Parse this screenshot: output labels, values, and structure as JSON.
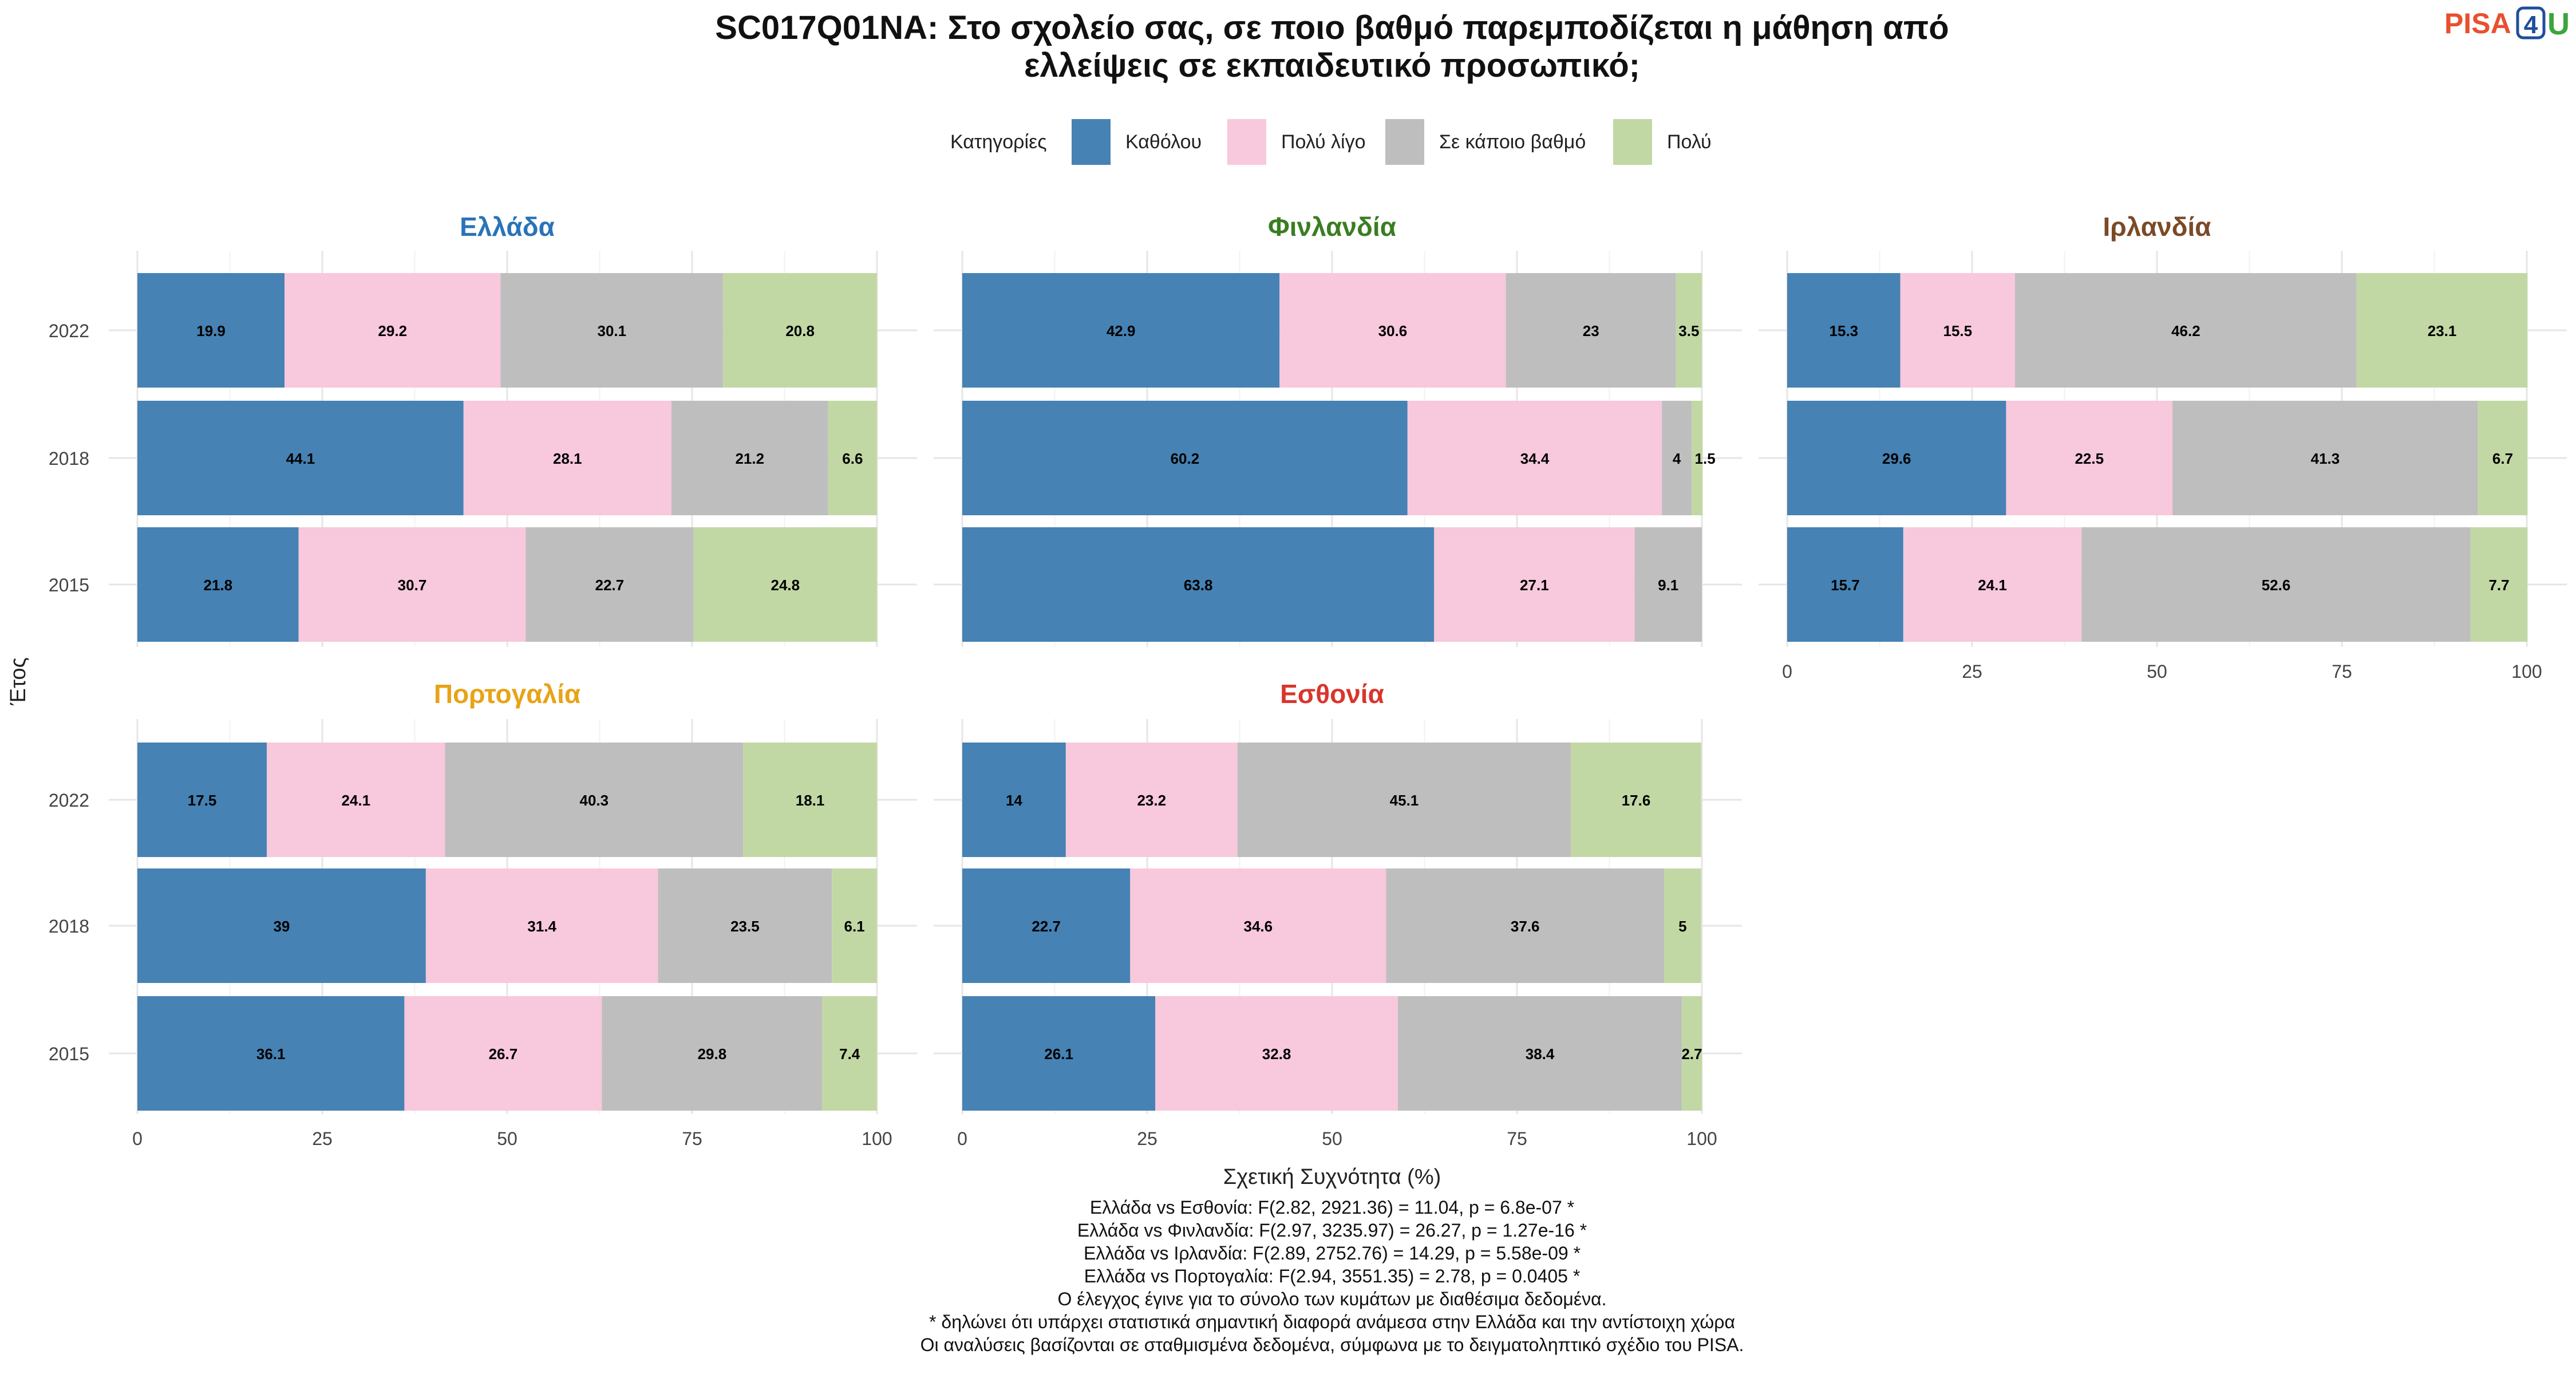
{
  "title_lines": [
    "SC017Q01NA: Στο σχολείο σας, σε ποιο βαθμό παρεμποδίζεται η μάθηση από",
    "ελλείψεις σε εκπαιδευτικό προσωπικό;"
  ],
  "logo": {
    "text_a": "PISA",
    "text_b": "4",
    "text_c": "U",
    "color_a": "#e8502f",
    "color_b": "#1f4e9c",
    "color_c": "#3aa53a"
  },
  "legend": {
    "title": "Κατηγορίες",
    "items": [
      {
        "label": "Καθόλου",
        "color": "#4682b4"
      },
      {
        "label": "Πολύ λίγο",
        "color": "#f8c8dc"
      },
      {
        "label": "Σε κάποιο βαθμό",
        "color": "#bebebe"
      },
      {
        "label": "Πολύ",
        "color": "#c2d8a4"
      }
    ]
  },
  "chart_data": {
    "type": "bar",
    "orientation": "horizontal",
    "stacked": true,
    "xlabel": "Σχετική Συχνότητα (%)",
    "ylabel": "Έτος",
    "xlim": [
      0,
      100
    ],
    "xticks": [
      0,
      25,
      50,
      75,
      100
    ],
    "categories": [
      "2022",
      "2018",
      "2015"
    ],
    "series_names": [
      "Καθόλου",
      "Πολύ λίγο",
      "Σε κάποιο βαθμό",
      "Πολύ"
    ],
    "legend_position": "top",
    "grid": true,
    "panels": [
      {
        "name": "Ελλάδα",
        "title_color": "#2a73b8",
        "values": {
          "2022": [
            19.9,
            29.2,
            30.1,
            20.8
          ],
          "2018": [
            44.1,
            28.1,
            21.2,
            6.6
          ],
          "2015": [
            21.8,
            30.7,
            22.7,
            24.8
          ]
        }
      },
      {
        "name": "Φινλανδία",
        "title_color": "#3a7d22",
        "values": {
          "2022": [
            42.9,
            30.6,
            23,
            3.5
          ],
          "2018": [
            60.2,
            34.4,
            4,
            1.5
          ],
          "2015": [
            63.8,
            27.1,
            9.1,
            null
          ]
        }
      },
      {
        "name": "Ιρλανδία",
        "title_color": "#7a4a28",
        "values": {
          "2022": [
            15.3,
            15.5,
            46.2,
            23.1
          ],
          "2018": [
            29.6,
            22.5,
            41.3,
            6.7
          ],
          "2015": [
            15.7,
            24.1,
            52.6,
            7.7
          ]
        }
      },
      {
        "name": "Πορτογαλία",
        "title_color": "#e8a317",
        "values": {
          "2022": [
            17.5,
            24.1,
            40.3,
            18.1
          ],
          "2018": [
            39,
            31.4,
            23.5,
            6.1
          ],
          "2015": [
            36.1,
            26.7,
            29.8,
            7.4
          ]
        }
      },
      {
        "name": "Εσθονία",
        "title_color": "#d9352c",
        "values": {
          "2022": [
            14,
            23.2,
            45.1,
            17.6
          ],
          "2018": [
            22.7,
            34.6,
            37.6,
            5
          ],
          "2015": [
            26.1,
            32.8,
            38.4,
            2.7
          ]
        }
      }
    ]
  },
  "footnotes": [
    "Ελλάδα vs Εσθονία: F(2.82, 2921.36) = 11.04, p = 6.8e-07 *",
    "Ελλάδα vs Φινλανδία: F(2.97, 3235.97) = 26.27, p = 1.27e-16 *",
    "Ελλάδα vs Ιρλανδία: F(2.89, 2752.76) = 14.29, p = 5.58e-09 *",
    "Ελλάδα vs Πορτογαλία: F(2.94, 3551.35) = 2.78, p = 0.0405 *",
    "Ο έλεγχος έγινε για το σύνολο των κυμάτων με διαθέσιμα δεδομένα.",
    "* δηλώνει ότι υπάρχει στατιστικά σημαντική διαφορά ανάμεσα στην Ελλάδα και την αντίστοιχη χώρα",
    "Οι αναλύσεις βασίζονται σε σταθμισμένα δεδομένα, σύμφωνα με το δειγματοληπτικό σχέδιο του PISA."
  ]
}
